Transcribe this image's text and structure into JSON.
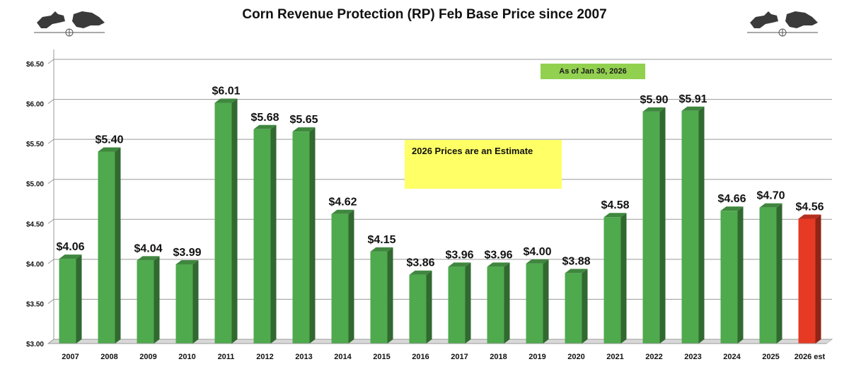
{
  "title": "Corn Revenue Protection (RP) Feb Base Price since 2007",
  "notes": {
    "as_of": "As of Jan 30, 2026",
    "estimate": "2026 Prices are an Estimate"
  },
  "icons": {
    "logo_left": "bull-bear-logo-icon",
    "logo_right": "bull-bear-logo-icon"
  },
  "colors": {
    "bar": "#4fa94d",
    "estimate_bar": "#e63a25",
    "note_green": "#92d050",
    "note_yellow": "#ffff66"
  },
  "chart_data": {
    "type": "bar",
    "title": "Corn Revenue Protection (RP) Feb Base Price since 2007",
    "xlabel": "",
    "ylabel": "",
    "ylim": [
      3.0,
      6.5
    ],
    "yticks": [
      "$3.00",
      "$3.50",
      "$4.00",
      "$4.50",
      "$5.00",
      "$5.50",
      "$6.00",
      "$6.50"
    ],
    "grid": true,
    "legend": "none",
    "categories": [
      "2007",
      "2008",
      "2009",
      "2010",
      "2011",
      "2012",
      "2013",
      "2014",
      "2015",
      "2016",
      "2017",
      "2018",
      "2019",
      "2020",
      "2021",
      "2022",
      "2023",
      "2024",
      "2025",
      "2026 est"
    ],
    "values": [
      4.06,
      5.4,
      4.04,
      3.99,
      6.01,
      5.68,
      5.65,
      4.62,
      4.15,
      3.86,
      3.96,
      3.96,
      4.0,
      3.88,
      4.58,
      5.9,
      5.91,
      4.66,
      4.7,
      4.56
    ],
    "data_labels": [
      "$4.06",
      "$5.40",
      "$4.04",
      "$3.99",
      "$6.01",
      "$5.68",
      "$5.65",
      "$4.62",
      "$4.15",
      "$3.86",
      "$3.96",
      "$3.96",
      "$4.00",
      "$3.88",
      "$4.58",
      "$5.90",
      "$5.91",
      "$4.66",
      "$4.70",
      "$4.56"
    ],
    "highlight": {
      "category": "2026 est",
      "color": "#e63a25"
    }
  }
}
